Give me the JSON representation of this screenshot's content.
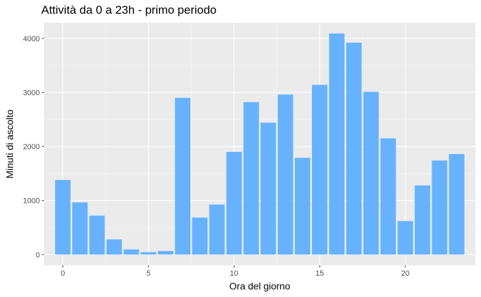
{
  "chart_data": {
    "type": "bar",
    "title": "Attività da 0 a 23h - primo periodo",
    "xlabel": "Ora del giorno",
    "ylabel": "Minuti di ascolto",
    "x": [
      0,
      1,
      2,
      3,
      4,
      5,
      6,
      7,
      8,
      9,
      10,
      11,
      12,
      13,
      14,
      15,
      16,
      17,
      18,
      19,
      20,
      21,
      22,
      23
    ],
    "values": [
      1380,
      965,
      720,
      280,
      95,
      45,
      65,
      2900,
      685,
      925,
      1900,
      2820,
      2440,
      2960,
      1790,
      3140,
      4090,
      3920,
      3010,
      2150,
      620,
      1280,
      1740,
      1860
    ],
    "xlim": [
      -1.1,
      24.1
    ],
    "ylim": [
      -200,
      4290
    ],
    "x_ticks": [
      0,
      5,
      10,
      15,
      20
    ],
    "y_ticks": [
      0,
      1000,
      2000,
      3000,
      4000
    ],
    "bar_color": "#66b2ff",
    "panel_background": "#ebebeb",
    "grid": true,
    "legend": "none"
  }
}
